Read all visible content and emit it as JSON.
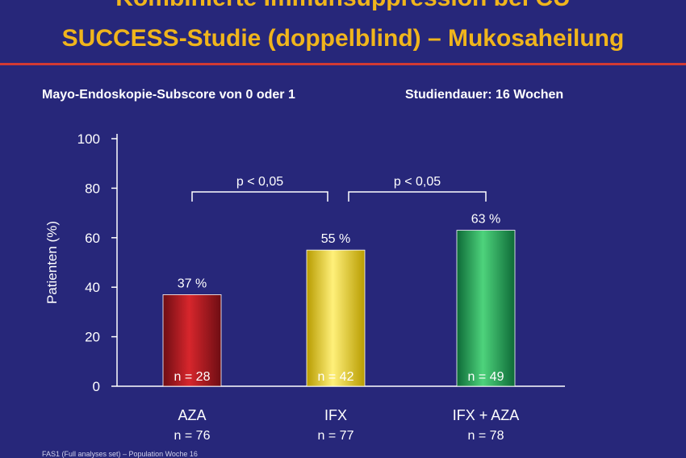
{
  "slide": {
    "title_line1": "Kombinierte Immunsuppression bei CU",
    "title_line2": "SUCCESS-Studie (doppelblind) – Mukosaheilung",
    "subtitle_left": "Mayo-Endoskopie-Subscore von 0 oder 1",
    "subtitle_right": "Studiendauer: 16 Wochen",
    "footnote": "FAS1 (Full analyses set) – Population Woche 16"
  },
  "colors": {
    "background": "#27277a",
    "title": "#f0b51c",
    "rule": "#d23a34",
    "text": "#ffffff"
  },
  "chart_data": {
    "type": "bar",
    "ylabel": "Patienten (%)",
    "xlabel": "",
    "ylim": [
      0,
      100
    ],
    "yticks": [
      0,
      20,
      40,
      60,
      80,
      100
    ],
    "grid": false,
    "categories": [
      "AZA",
      "IFX",
      "IFX + AZA"
    ],
    "category_n": [
      "n = 76",
      "n = 77",
      "n = 78"
    ],
    "values": [
      37,
      55,
      63
    ],
    "value_labels": [
      "37 %",
      "55 %",
      "63 %"
    ],
    "inner_labels": [
      "n = 28",
      "n = 42",
      "n = 49"
    ],
    "bar_colors": [
      {
        "light": "#d7262c",
        "dark": "#6e0d13"
      },
      {
        "light": "#fff07a",
        "dark": "#b89c00"
      },
      {
        "light": "#4ed37c",
        "dark": "#0d6a37"
      }
    ],
    "comparisons": [
      {
        "from": 0,
        "to": 1,
        "label": "p < 0,05"
      },
      {
        "from": 1,
        "to": 2,
        "label": "p < 0,05"
      }
    ]
  }
}
